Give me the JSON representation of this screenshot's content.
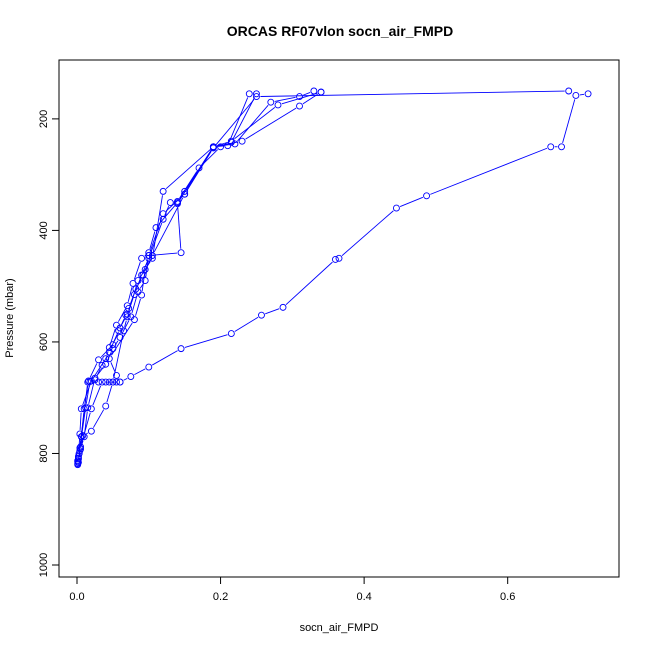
{
  "chart_data": {
    "type": "line",
    "title": "ORCAS RF07vlon socn_air_FMPD",
    "xlabel": "socn_air_FMPD",
    "ylabel": "Pressure (mbar)",
    "xlim": [
      0,
      0.73
    ],
    "ylim": [
      1000,
      150
    ],
    "y_reversed": true,
    "grid": false,
    "legend": "none",
    "series_color": "#0000ff",
    "x_ticks": [
      {
        "value": 0.0,
        "label": "0.0"
      },
      {
        "value": 0.2,
        "label": "0.2"
      },
      {
        "value": 0.4,
        "label": "0.4"
      },
      {
        "value": 0.6,
        "label": "0.6"
      }
    ],
    "y_ticks": [
      {
        "value": 200,
        "label": "200"
      },
      {
        "value": 400,
        "label": "400"
      },
      {
        "value": 600,
        "label": "600"
      },
      {
        "value": 800,
        "label": "800"
      },
      {
        "value": 1000,
        "label": "1000"
      }
    ],
    "series": [
      {
        "x": [
          0.001,
          0.002,
          0.004,
          0.006,
          0.02,
          0.04,
          0.045,
          0.055,
          0.07,
          0.078,
          0.09,
          0.1,
          0.11,
          0.14,
          0.15,
          0.19,
          0.21,
          0.24
        ],
        "y": [
          820,
          805,
          765,
          720,
          670,
          630,
          610,
          570,
          535,
          495,
          450,
          440,
          395,
          350,
          330,
          250,
          248,
          155
        ]
      },
      {
        "x": [
          0.001,
          0.003,
          0.006,
          0.01,
          0.016,
          0.03,
          0.05,
          0.06,
          0.07,
          0.08,
          0.09,
          0.1,
          0.12,
          0.13,
          0.14,
          0.17,
          0.2,
          0.215,
          0.25
        ],
        "y": [
          815,
          800,
          770,
          720,
          670,
          632,
          605,
          575,
          550,
          515,
          480,
          450,
          380,
          350,
          348,
          288,
          250,
          242,
          155
        ]
      },
      {
        "x": [
          0.002,
          0.005,
          0.01,
          0.015,
          0.025,
          0.04,
          0.05,
          0.06,
          0.075,
          0.085,
          0.095,
          0.1,
          0.145,
          0.14,
          0.19,
          0.215,
          0.28,
          0.34
        ],
        "y": [
          810,
          792,
          770,
          718,
          665,
          640,
          612,
          592,
          555,
          510,
          490,
          445,
          440,
          352,
          250,
          240,
          175,
          152
        ]
      },
      {
        "x": [
          0.001,
          0.004,
          0.008,
          0.02,
          0.04,
          0.05,
          0.065,
          0.07,
          0.085,
          0.105,
          0.12,
          0.19,
          0.23,
          0.31,
          0.34
        ],
        "y": [
          813,
          795,
          768,
          760,
          715,
          672,
          580,
          555,
          490,
          450,
          330,
          250,
          240,
          177,
          152
        ]
      },
      {
        "x": [
          0.001,
          0.003,
          0.015,
          0.03,
          0.04,
          0.045,
          0.05,
          0.055,
          0.06,
          0.075,
          0.1,
          0.145,
          0.215,
          0.257,
          0.287,
          0.36,
          0.365,
          0.445,
          0.487,
          0.66,
          0.675,
          0.695,
          0.712
        ],
        "y": [
          818,
          800,
          672,
          672,
          672,
          672,
          672,
          672,
          672,
          662,
          645,
          612,
          585,
          552,
          538,
          452,
          450,
          360,
          338,
          250,
          250,
          158,
          155
        ]
      },
      {
        "x": [
          0.002,
          0.005,
          0.02,
          0.035,
          0.06,
          0.055,
          0.045,
          0.08,
          0.09,
          0.095,
          0.1,
          0.12,
          0.15,
          0.19,
          0.22,
          0.27,
          0.31,
          0.33
        ],
        "y": [
          816,
          788,
          720,
          672,
          672,
          660,
          630,
          560,
          516,
          470,
          445,
          370,
          335,
          250,
          245,
          170,
          160,
          150
        ]
      },
      {
        "x": [
          0.002,
          0.004,
          0.012,
          0.018,
          0.025,
          0.035,
          0.045,
          0.058,
          0.068,
          0.072,
          0.082,
          0.092,
          0.105,
          0.15,
          0.19,
          0.25,
          0.685
        ],
        "y": [
          808,
          790,
          718,
          671,
          668,
          642,
          618,
          580,
          552,
          540,
          505,
          480,
          445,
          335,
          252,
          160,
          150
        ]
      }
    ]
  }
}
